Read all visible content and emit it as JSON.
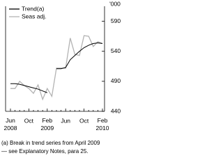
{
  "chart_data": {
    "type": "line",
    "y_unit_label": "'000",
    "categories": [
      "Jun 2008",
      null,
      null,
      null,
      "Oct",
      null,
      null,
      null,
      "Feb 2009",
      null,
      null,
      null,
      "Jun",
      null,
      null,
      null,
      "Oct",
      null,
      null,
      null,
      "Feb 2010"
    ],
    "series": [
      {
        "name": "Trend(a)",
        "color": "#000000",
        "values": [
          486,
          486,
          485,
          483,
          481,
          479,
          477,
          474,
          471,
          null,
          511,
          511,
          513,
          526,
          533,
          540,
          546,
          550,
          553,
          554,
          553
        ]
      },
      {
        "name": "Seas adj.",
        "color": "#b3b3b3",
        "values": [
          478,
          478,
          490,
          483,
          478,
          470,
          484,
          460,
          478,
          465,
          512,
          512,
          512,
          562,
          535,
          533,
          566,
          565,
          548,
          556,
          553
        ]
      }
    ],
    "ylim": [
      440,
      615
    ],
    "yticks": [
      440,
      490,
      540,
      590
    ],
    "footnotes": [
      "(a) Break in trend series from April 2009",
      "— see Explanatory Notes, para 25."
    ]
  }
}
